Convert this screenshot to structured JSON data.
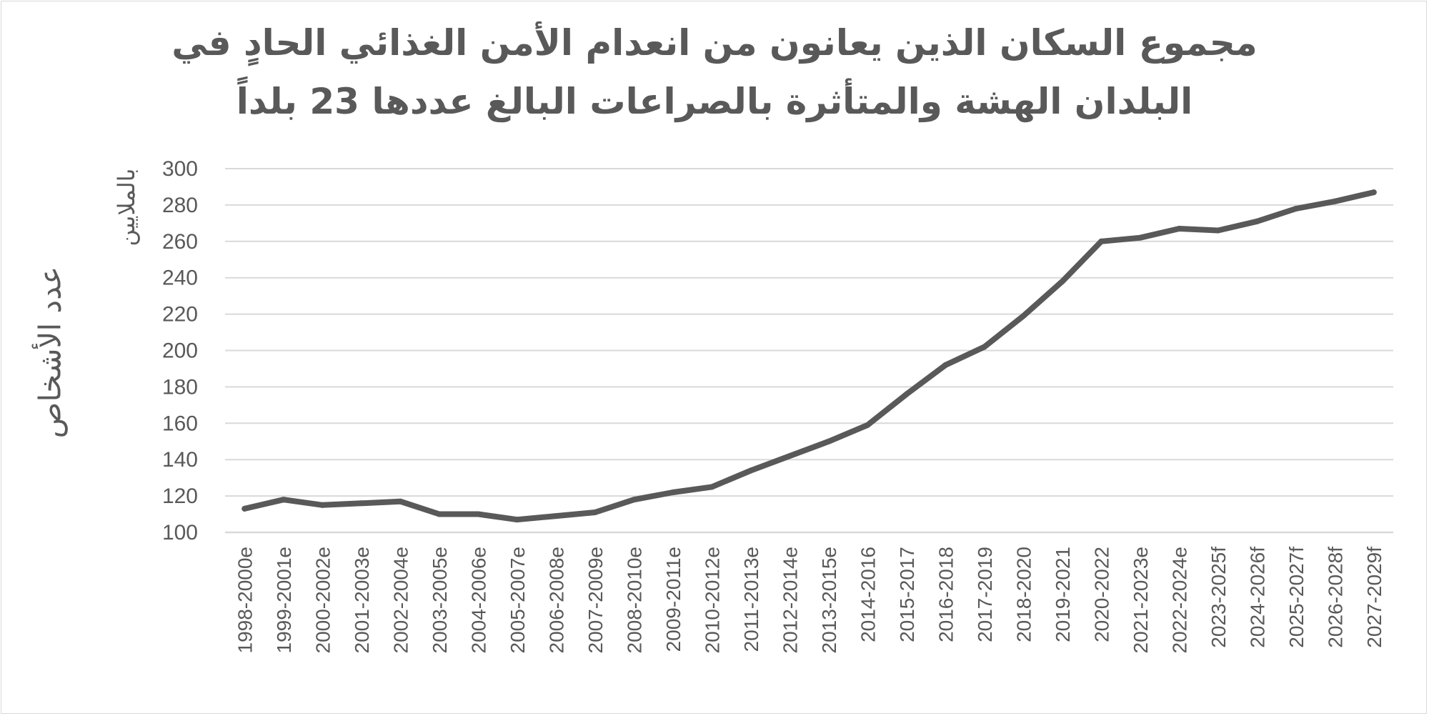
{
  "chart_data": {
    "type": "line",
    "title_line1": "مجموع السكان الذين يعانون من انعدام الأمن الغذائي الحادٍ في",
    "title_line2": "البلدان الهشة والمتأثرة بالصراعات البالغ عددها 23 بلداً",
    "ylabel": "عدد الأشخاص",
    "yunit": "بالملايين",
    "xlabel": "",
    "ylim": [
      100,
      300
    ],
    "yticks": [
      100,
      120,
      140,
      160,
      180,
      200,
      220,
      240,
      260,
      280,
      300
    ],
    "grid": true,
    "legend": "none",
    "line_color": "#595959",
    "grid_color": "#d9d9d9",
    "categories": [
      "1998-2000e",
      "1999-2001e",
      "2000-2002e",
      "2001-2003e",
      "2002-2004e",
      "2003-2005e",
      "2004-2006e",
      "2005-2007e",
      "2006-2008e",
      "2007-2009e",
      "2008-2010e",
      "2009-2011e",
      "2010-2012e",
      "2011-2013e",
      "2012-2014e",
      "2013-2015e",
      "2014-2016",
      "2015-2017",
      "2016-2018",
      "2017-2019",
      "2018-2020",
      "2019-2021",
      "2020-2022",
      "2021-2023e",
      "2022-2024e",
      "2023-2025f",
      "2024-2026f",
      "2025-2027f",
      "2026-2028f",
      "2027-2029f"
    ],
    "series": [
      {
        "values": [
          113,
          118,
          115,
          116,
          117,
          110,
          110,
          107,
          109,
          111,
          118,
          122,
          125,
          134,
          142,
          150,
          159,
          176,
          192,
          202,
          219,
          238,
          260,
          262,
          267,
          266,
          271,
          278,
          282,
          287
        ]
      }
    ]
  }
}
